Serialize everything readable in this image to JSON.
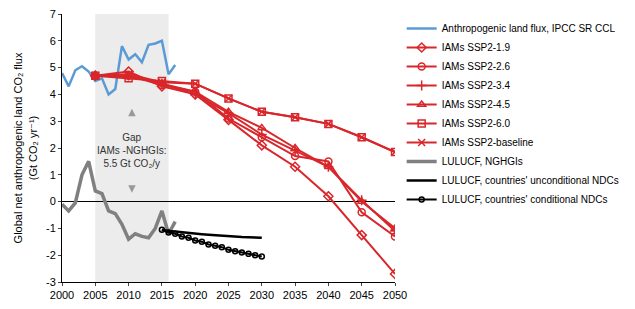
{
  "chart_data": {
    "type": "line",
    "y_label": "Global net anthropogenic land CO₂ flux (Gt CO₂ yr⁻¹)",
    "xlim": [
      2000,
      2050
    ],
    "xticks": [
      2000,
      2005,
      2010,
      2015,
      2020,
      2025,
      2030,
      2035,
      2040,
      2045,
      2050
    ],
    "ylim": [
      -3,
      7
    ],
    "yticks": [
      -3,
      -2,
      -1,
      0,
      1,
      2,
      3,
      4,
      5,
      6,
      7
    ],
    "grid": false,
    "legend": "right",
    "highlight_x": [
      2005,
      2016
    ],
    "annotation": [
      "Gap",
      "IAMs -NGHGIs:",
      "5.5 Gt CO₂/y"
    ],
    "series": [
      {
        "name": "Anthropogenic land flux, IPCC SR CCL",
        "color": "#5b9bd5",
        "marker": "none",
        "line_style": "solid",
        "x": [
          2000,
          2001,
          2002,
          2003,
          2004,
          2005,
          2006,
          2007,
          2008,
          2009,
          2010,
          2011,
          2012,
          2013,
          2014,
          2015,
          2016,
          2017
        ],
        "values": [
          4.8,
          4.3,
          4.9,
          5.05,
          4.85,
          4.5,
          4.6,
          4.0,
          4.2,
          5.8,
          5.3,
          5.5,
          5.2,
          5.85,
          5.9,
          6.0,
          4.75,
          5.1
        ]
      },
      {
        "name": "IAMs SSP2-1.9",
        "color": "#d9262b",
        "marker": "diamond",
        "line_style": "solid",
        "x": [
          2005,
          2010,
          2015,
          2020,
          2025,
          2030,
          2035,
          2040,
          2045,
          2050
        ],
        "values": [
          4.7,
          4.85,
          4.3,
          4.0,
          3.05,
          2.1,
          1.3,
          0.2,
          -1.25,
          -2.7
        ]
      },
      {
        "name": "IAMs SSP2-2.6",
        "color": "#d9262b",
        "marker": "circle",
        "line_style": "solid",
        "x": [
          2005,
          2010,
          2015,
          2020,
          2025,
          2030,
          2035,
          2040,
          2045,
          2050
        ],
        "values": [
          4.7,
          4.7,
          4.35,
          4.1,
          3.1,
          2.4,
          1.7,
          1.5,
          -0.4,
          -1.3
        ]
      },
      {
        "name": "IAMs SSP2-3.4",
        "color": "#d9262b",
        "marker": "plus",
        "line_style": "solid",
        "x": [
          2005,
          2010,
          2015,
          2020,
          2025,
          2030,
          2035,
          2040,
          2045,
          2050
        ],
        "values": [
          4.7,
          4.7,
          4.4,
          4.0,
          3.3,
          2.5,
          1.9,
          1.3,
          0.05,
          -1.1
        ]
      },
      {
        "name": "IAMs SSP2-4.5",
        "color": "#d9262b",
        "marker": "triangle",
        "line_style": "solid",
        "x": [
          2005,
          2010,
          2015,
          2020,
          2025,
          2030,
          2035,
          2040,
          2045,
          2050
        ],
        "values": [
          4.7,
          4.7,
          4.4,
          4.1,
          3.35,
          2.75,
          2.0,
          1.3,
          0.0,
          -1.0
        ]
      },
      {
        "name": "IAMs SSP2-6.0",
        "color": "#d9262b",
        "marker": "square",
        "line_style": "solid",
        "x": [
          2005,
          2010,
          2015,
          2020,
          2025,
          2030,
          2035,
          2040,
          2045,
          2050
        ],
        "values": [
          4.7,
          4.6,
          4.5,
          4.4,
          3.85,
          3.35,
          3.15,
          2.9,
          2.4,
          1.85
        ]
      },
      {
        "name": "IAMs SSP2-baseline",
        "color": "#d9262b",
        "marker": "x",
        "line_style": "solid",
        "x": [
          2005,
          2010,
          2015,
          2020,
          2025,
          2030,
          2035,
          2040,
          2045,
          2050
        ],
        "values": [
          4.7,
          4.75,
          4.45,
          4.4,
          3.85,
          3.35,
          3.15,
          2.9,
          2.4,
          1.85
        ]
      },
      {
        "name": "LULUCF, NGHGIs",
        "color": "#808080",
        "marker": "none",
        "line_style": "solid",
        "x": [
          2000,
          2001,
          2002,
          2003,
          2004,
          2005,
          2006,
          2007,
          2008,
          2009,
          2010,
          2011,
          2012,
          2013,
          2014,
          2015,
          2016,
          2017
        ],
        "values": [
          -0.1,
          -0.35,
          -0.05,
          1.0,
          1.5,
          0.4,
          0.3,
          -0.35,
          -0.45,
          -0.85,
          -1.4,
          -1.2,
          -1.3,
          -1.35,
          -1.0,
          -0.35,
          -1.2,
          -0.75
        ]
      },
      {
        "name": "LULUCF, countries' unconditional NDCs",
        "color": "#000000",
        "marker": "none",
        "line_style": "solid",
        "x": [
          2015,
          2016,
          2017,
          2018,
          2019,
          2020,
          2021,
          2022,
          2023,
          2024,
          2025,
          2026,
          2027,
          2028,
          2029,
          2030
        ],
        "values": [
          -1.05,
          -1.1,
          -1.12,
          -1.15,
          -1.17,
          -1.2,
          -1.22,
          -1.24,
          -1.26,
          -1.28,
          -1.3,
          -1.31,
          -1.32,
          -1.33,
          -1.34,
          -1.35
        ]
      },
      {
        "name": "LULUCF, countries' conditional NDCs",
        "color": "#000000",
        "marker": "circle",
        "line_style": "solid",
        "x": [
          2015,
          2016,
          2017,
          2018,
          2019,
          2020,
          2021,
          2022,
          2023,
          2024,
          2025,
          2026,
          2027,
          2028,
          2029,
          2030
        ],
        "values": [
          -1.05,
          -1.15,
          -1.2,
          -1.3,
          -1.35,
          -1.45,
          -1.5,
          -1.6,
          -1.65,
          -1.7,
          -1.8,
          -1.85,
          -1.9,
          -1.95,
          -2.0,
          -2.05
        ]
      }
    ]
  }
}
